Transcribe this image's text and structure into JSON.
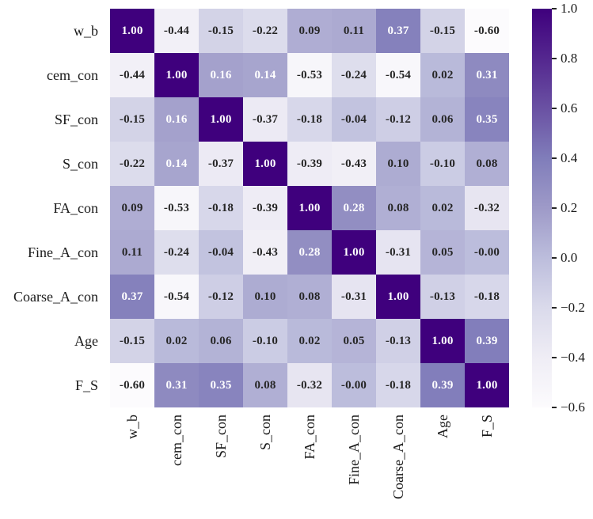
{
  "chart_data": {
    "type": "heatmap",
    "title": "",
    "xlabel": "",
    "ylabel": "",
    "categories": [
      "w_b",
      "cem_con",
      "SF_con",
      "S_con",
      "FA_con",
      "Fine_A_con",
      "Coarse_A_con",
      "Age",
      "F_S"
    ],
    "values": [
      [
        1.0,
        -0.44,
        -0.15,
        -0.22,
        0.09,
        0.11,
        0.37,
        -0.15,
        -0.6
      ],
      [
        -0.44,
        1.0,
        0.16,
        0.14,
        -0.53,
        -0.24,
        -0.54,
        0.02,
        0.31
      ],
      [
        -0.15,
        0.16,
        1.0,
        -0.37,
        -0.18,
        -0.04,
        -0.12,
        0.06,
        0.35
      ],
      [
        -0.22,
        0.14,
        -0.37,
        1.0,
        -0.39,
        -0.43,
        0.1,
        -0.1,
        0.08
      ],
      [
        0.09,
        -0.53,
        -0.18,
        -0.39,
        1.0,
        0.28,
        0.08,
        0.02,
        -0.32
      ],
      [
        0.11,
        -0.24,
        -0.04,
        -0.43,
        0.28,
        1.0,
        -0.31,
        0.05,
        -0.0
      ],
      [
        0.37,
        -0.54,
        -0.12,
        0.1,
        0.08,
        -0.31,
        1.0,
        -0.13,
        -0.18
      ],
      [
        -0.15,
        0.02,
        0.06,
        -0.1,
        0.02,
        0.05,
        -0.13,
        1.0,
        0.39
      ],
      [
        -0.6,
        0.31,
        0.35,
        0.08,
        -0.32,
        -0.0,
        -0.18,
        0.39,
        1.0
      ]
    ],
    "cell_labels": [
      [
        "1.00",
        "-0.44",
        "-0.15",
        "-0.22",
        "0.09",
        "0.11",
        "0.37",
        "-0.15",
        "-0.60"
      ],
      [
        "-0.44",
        "1.00",
        "0.16",
        "0.14",
        "-0.53",
        "-0.24",
        "-0.54",
        "0.02",
        "0.31"
      ],
      [
        "-0.15",
        "0.16",
        "1.00",
        "-0.37",
        "-0.18",
        "-0.04",
        "-0.12",
        "0.06",
        "0.35"
      ],
      [
        "-0.22",
        "0.14",
        "-0.37",
        "1.00",
        "-0.39",
        "-0.43",
        "0.10",
        "-0.10",
        "0.08"
      ],
      [
        "0.09",
        "-0.53",
        "-0.18",
        "-0.39",
        "1.00",
        "0.28",
        "0.08",
        "0.02",
        "-0.32"
      ],
      [
        "0.11",
        "-0.24",
        "-0.04",
        "-0.43",
        "0.28",
        "1.00",
        "-0.31",
        "0.05",
        "-0.00"
      ],
      [
        "0.37",
        "-0.54",
        "-0.12",
        "0.10",
        "0.08",
        "-0.31",
        "1.00",
        "-0.13",
        "-0.18"
      ],
      [
        "-0.15",
        "0.02",
        "0.06",
        "-0.10",
        "0.02",
        "0.05",
        "-0.13",
        "1.00",
        "0.39"
      ],
      [
        "-0.60",
        "0.31",
        "0.35",
        "0.08",
        "-0.32",
        "-0.00",
        "-0.18",
        "0.39",
        "1.00"
      ]
    ],
    "vmin": -0.6,
    "vmax": 1.0,
    "grid": false,
    "colormap_name": "Purples",
    "colormap_stops": [
      "#fcfbfd",
      "#efedf5",
      "#dadaeb",
      "#bcbddc",
      "#9e9ac8",
      "#807dba",
      "#6a51a3",
      "#54278f",
      "#3f007d"
    ],
    "annotation_dark_color": "#262626",
    "annotation_light_color": "#ffffff",
    "axis_label_color": "#1a1a1a",
    "legend_position": "right-colorbar",
    "colorbar": {
      "tick_values": [
        1.0,
        0.8,
        0.6,
        0.4,
        0.2,
        0.0,
        -0.2,
        -0.4,
        -0.6
      ],
      "tick_labels": [
        "1.0",
        "0.8",
        "0.6",
        "0.4",
        "0.2",
        "0.0",
        "−0.2",
        "−0.4",
        "−0.6"
      ]
    }
  }
}
